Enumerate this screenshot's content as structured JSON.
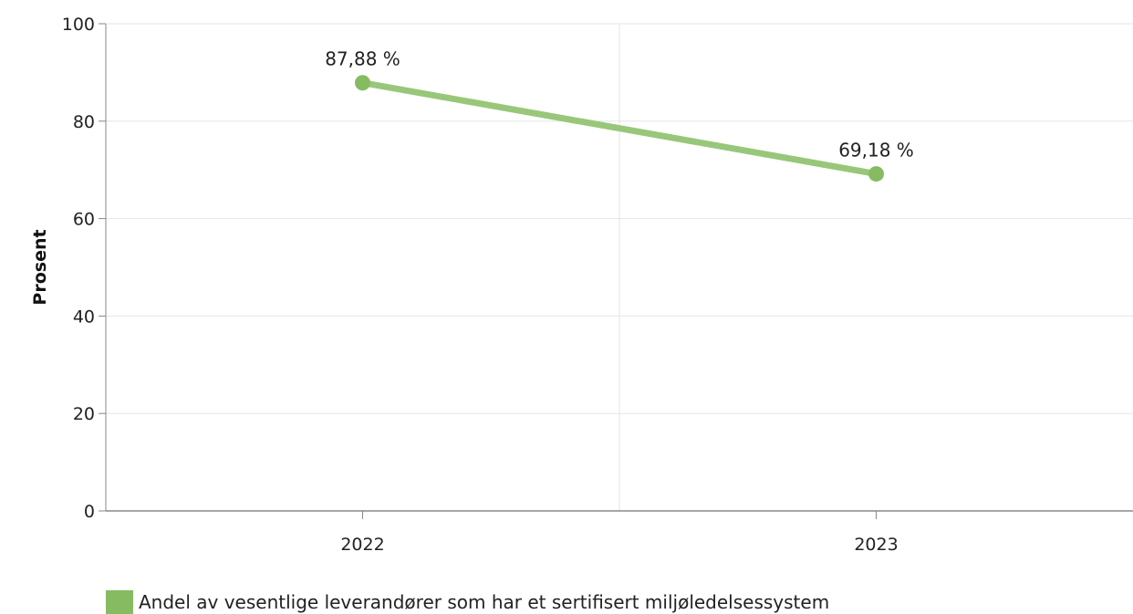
{
  "chart_data": {
    "type": "line",
    "categories": [
      "2022",
      "2023"
    ],
    "series": [
      {
        "name": "Andel av vesentlige leverandører som har et sertifisert miljøledelsessystem",
        "values": [
          87.88,
          69.18
        ],
        "labels": [
          "87,88 %",
          "69,18 %"
        ],
        "color": "#87bb62"
      }
    ],
    "title": "",
    "xlabel": "",
    "ylabel": "Prosent",
    "ylim": [
      0,
      100
    ],
    "yticks": [
      "0",
      "20",
      "40",
      "60",
      "80",
      "100"
    ],
    "grid": true,
    "legend_position": "bottom-left"
  }
}
